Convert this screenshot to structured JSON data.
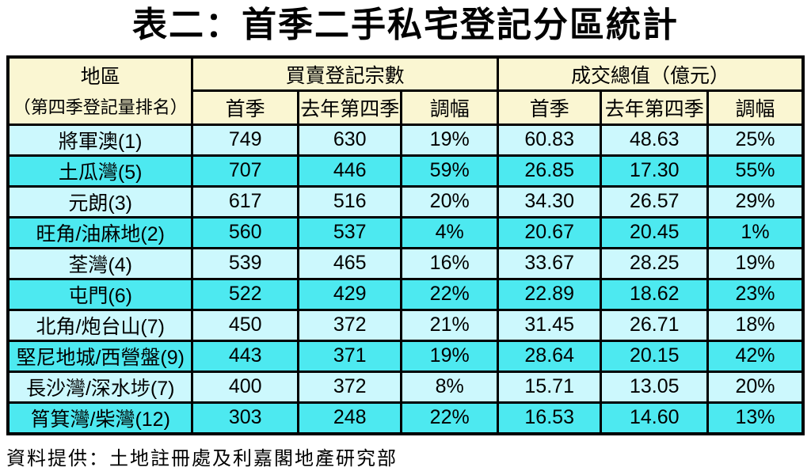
{
  "title": "表二：首季二手私宅登記分區統計",
  "footer_source": "資料提供：土地註冊處及利嘉閣地產研究部",
  "colors": {
    "header_bg": "#FAF6D2",
    "row_light": "#CCF8FD",
    "row_bright": "#4DE9F0",
    "border": "#000000"
  },
  "chart_data": {
    "type": "table",
    "title": "表二：首季二手私宅登記分區統計",
    "column_groups": [
      {
        "label": "地區",
        "sublabel": "（第四季登記量排名）",
        "span": 1
      },
      {
        "label": "買賣登記宗數",
        "span": 3
      },
      {
        "label": "成交總值（億元）",
        "span": 3
      }
    ],
    "sub_headers": [
      "首季",
      "去年第四季",
      "調幅",
      "首季",
      "去年第四季",
      "調幅"
    ],
    "rows": [
      {
        "district": "將軍澳(1)",
        "values": [
          "749",
          "630",
          "19%",
          "60.83",
          "48.63",
          "25%"
        ]
      },
      {
        "district": "土瓜灣(5)",
        "values": [
          "707",
          "446",
          "59%",
          "26.85",
          "17.30",
          "55%"
        ]
      },
      {
        "district": "元朗(3)",
        "values": [
          "617",
          "516",
          "20%",
          "34.30",
          "26.57",
          "29%"
        ]
      },
      {
        "district": "旺角/油麻地(2)",
        "values": [
          "560",
          "537",
          "4%",
          "20.67",
          "20.45",
          "1%"
        ]
      },
      {
        "district": "荃灣(4)",
        "values": [
          "539",
          "465",
          "16%",
          "33.67",
          "28.25",
          "19%"
        ]
      },
      {
        "district": "屯門(6)",
        "values": [
          "522",
          "429",
          "22%",
          "22.89",
          "18.62",
          "23%"
        ]
      },
      {
        "district": "北角/炮台山(7)",
        "values": [
          "450",
          "372",
          "21%",
          "31.45",
          "26.71",
          "18%"
        ]
      },
      {
        "district": "堅尼地城/西營盤(9)",
        "values": [
          "443",
          "371",
          "19%",
          "28.64",
          "20.15",
          "42%"
        ]
      },
      {
        "district": "長沙灣/深水埗(7)",
        "values": [
          "400",
          "372",
          "8%",
          "15.71",
          "13.05",
          "20%"
        ]
      },
      {
        "district": "筲箕灣/柴灣(12)",
        "values": [
          "303",
          "248",
          "22%",
          "16.53",
          "14.60",
          "13%"
        ]
      }
    ]
  }
}
